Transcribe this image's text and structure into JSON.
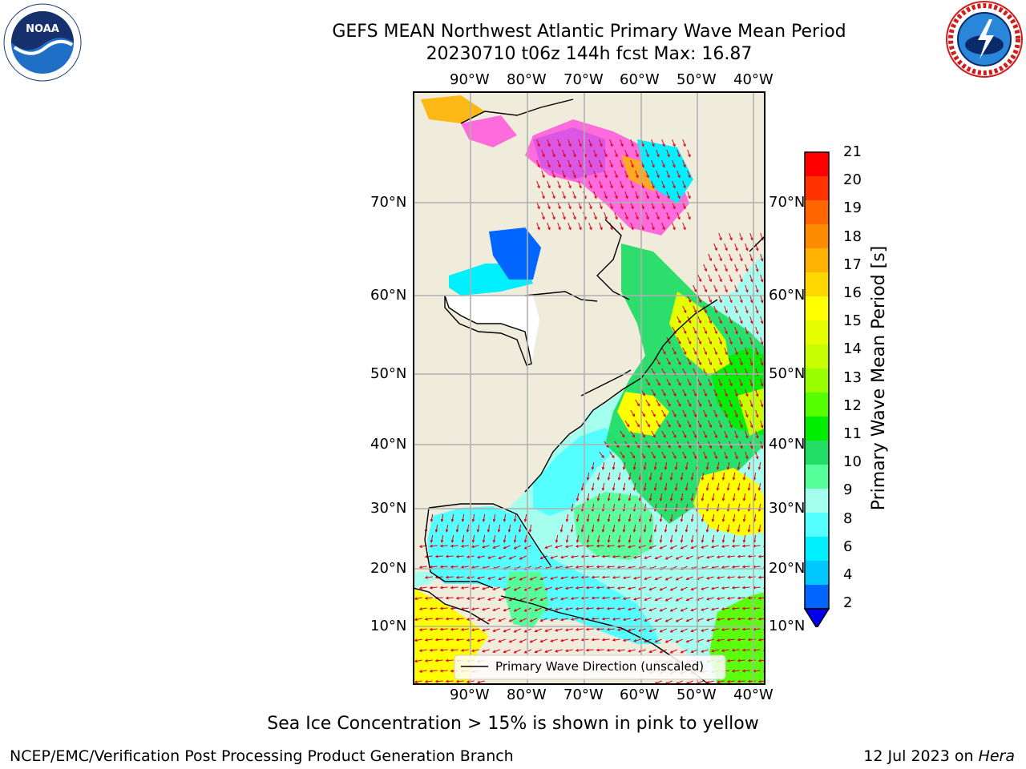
{
  "header": {
    "title_line1": "GEFS MEAN Northwest Atlantic Primary Wave Mean Period",
    "title_line2": "20230710 t06z 144h fcst   Max: 16.87"
  },
  "logos": {
    "left": {
      "icon": "noaa-logo-icon",
      "text": "NOAA"
    },
    "right": {
      "icon": "nws-logo-icon",
      "ring_text": "NATIONAL WEATHER SERVICE"
    }
  },
  "map": {
    "lon_labels": [
      "90°W",
      "80°W",
      "70°W",
      "60°W",
      "50°W",
      "40°W"
    ],
    "lat_labels": [
      "70°N",
      "60°N",
      "50°N",
      "40°N",
      "30°N",
      "20°N",
      "10°N"
    ],
    "legend_label": "Primary Wave Direction (unscaled)",
    "colors": {
      "land": "#efecdc",
      "grid": "#b0b0b0",
      "arrows": "#e0001a"
    }
  },
  "colorbar": {
    "label": "Primary Wave Mean Period [s]",
    "ticks": [
      "21",
      "20",
      "19",
      "18",
      "17",
      "16",
      "15",
      "14",
      "13",
      "12",
      "11",
      "10",
      "9",
      "8",
      "6",
      "4",
      "2"
    ],
    "colors": [
      "#ff0000",
      "#ff3300",
      "#ff6600",
      "#ff8c00",
      "#ffb300",
      "#ffd700",
      "#ffff00",
      "#e6ff00",
      "#c8ff00",
      "#99ff00",
      "#55ff00",
      "#00ee00",
      "#22dd66",
      "#55ff99",
      "#a5ffee",
      "#55ffff",
      "#00f0ff",
      "#00c8ff",
      "#0066ff"
    ],
    "extend_color": "#0000ee"
  },
  "notes": {
    "sea_ice": "Sea Ice Concentration > 15% is shown in pink to yellow"
  },
  "footer": {
    "left": "NCEP/EMC/Verification Post Processing Product Generation Branch",
    "right_prefix": "12 Jul 2023 on ",
    "right_machine": "Hera"
  }
}
